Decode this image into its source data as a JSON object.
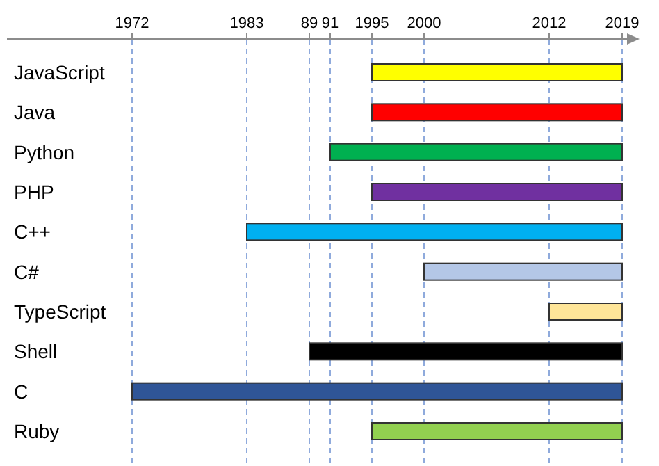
{
  "chart_data": {
    "type": "bar",
    "orientation": "horizontal",
    "categories": [
      "JavaScript",
      "Java",
      "Python",
      "PHP",
      "C++",
      "C#",
      "TypeScript",
      "Shell",
      "C",
      "Ruby"
    ],
    "base": [
      1995,
      1995,
      1991,
      1995,
      1983,
      2000,
      2012,
      1989,
      1972,
      1995
    ],
    "values": [
      24,
      24,
      28,
      24,
      36,
      19,
      7,
      30,
      47,
      24
    ],
    "colors": [
      "#ffff00",
      "#ff0000",
      "#00b050",
      "#7030a0",
      "#00b0f0",
      "#b4c7e7",
      "#ffe699",
      "#000000",
      "#2f5597",
      "#92d050"
    ],
    "xlim": [
      1960,
      2020
    ],
    "xticks": [
      1972,
      1983,
      {
        "value": 1989,
        "label": "89"
      },
      {
        "value": 1991,
        "label": "91"
      },
      1995,
      2000,
      2012,
      2019
    ],
    "grid": "x"
  }
}
